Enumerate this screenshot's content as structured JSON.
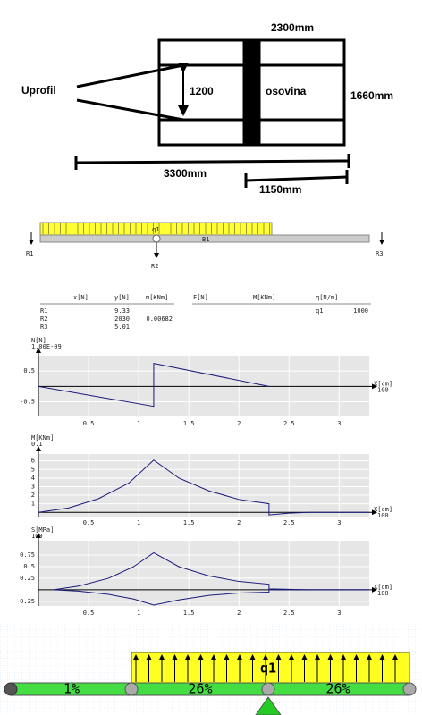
{
  "sketch": {
    "top_width": "2300mm",
    "profile": "Uprofil",
    "inner": "1200",
    "axle": "osovina",
    "height": "1660mm",
    "length": "3300mm",
    "offset": "1150mm"
  },
  "beam": {
    "load": "q1",
    "member": "B1",
    "supports": [
      "R1",
      "R2",
      "R3"
    ]
  },
  "table": {
    "headers": [
      "x[N]",
      "y[N]",
      "m[KNm]",
      "F[N]",
      "M[KNm]",
      "q[N/m]"
    ],
    "rows": [
      {
        "name": "R1",
        "y": "9.33"
      },
      {
        "name": "R2",
        "y": "2030",
        "m": "0.00682"
      },
      {
        "name": "R3",
        "y": "5.01"
      }
    ],
    "loads": [
      {
        "name": "q1",
        "q": "1000"
      }
    ]
  },
  "chart_data": [
    {
      "type": "line",
      "y_label": "N[N]",
      "y_scale": "1.00E-09",
      "x_label": "X[cm]",
      "x_scale": "100",
      "grid": true,
      "x": [
        0,
        1.15,
        1.15,
        2.3
      ],
      "series": [
        {
          "color": "#1a1a7a",
          "values": [
            0,
            -0.65,
            0.75,
            0
          ]
        }
      ],
      "xlim": [
        0,
        3.3
      ],
      "ylim": [
        -0.95,
        1.0
      ],
      "xticks": [
        0.5,
        1,
        1.5,
        2,
        2.5,
        3
      ],
      "yticks": [
        0.5,
        -0.5
      ]
    },
    {
      "type": "line",
      "y_label": "M[KNm]",
      "y_scale": "0.1",
      "x_label": "X[cm]",
      "x_scale": "100",
      "grid": true,
      "x": [
        0,
        0.3,
        0.6,
        0.9,
        1.15,
        1.4,
        1.7,
        2.0,
        2.3,
        2.3,
        2.5,
        2.7,
        3.3
      ],
      "series": [
        {
          "color": "#1a1a7a",
          "values": [
            0,
            0.5,
            1.6,
            3.4,
            6.1,
            4.0,
            2.5,
            1.5,
            1.0,
            -0.3,
            -0.1,
            0,
            0
          ]
        }
      ],
      "xlim": [
        0,
        3.3
      ],
      "ylim": [
        -0.5,
        6.8
      ],
      "xticks": [
        0.5,
        1,
        1.5,
        2,
        2.5,
        3
      ],
      "yticks": [
        1,
        2,
        3,
        4,
        5,
        6
      ]
    },
    {
      "type": "line",
      "y_label": "S[MPa]",
      "y_scale": "100",
      "x_label": "X[cm]",
      "x_scale": "100",
      "grid": true,
      "x": [
        0.15,
        0.4,
        0.7,
        0.95,
        1.15,
        1.4,
        1.7,
        2.0,
        2.3,
        2.3,
        2.5,
        2.7,
        3.3
      ],
      "series": [
        {
          "color": "#1a1a7a",
          "values": [
            0,
            0.08,
            0.25,
            0.5,
            0.8,
            0.5,
            0.3,
            0.18,
            0.12,
            0.02,
            0.01,
            0,
            0
          ]
        },
        {
          "color": "#1a1a7a",
          "values": [
            0,
            -0.03,
            -0.1,
            -0.2,
            -0.33,
            -0.22,
            -0.12,
            -0.07,
            -0.05,
            0,
            0,
            0,
            0
          ]
        }
      ],
      "xlim": [
        0,
        3.3
      ],
      "ylim": [
        -0.35,
        1.06
      ],
      "xticks": [
        0.5,
        1,
        1.5,
        2,
        2.5,
        3
      ],
      "yticks": [
        0.75,
        0.5,
        0.25,
        -0.25
      ]
    }
  ],
  "bottom": {
    "load": "q1",
    "segments": [
      "1%",
      "26%",
      "26%"
    ]
  }
}
